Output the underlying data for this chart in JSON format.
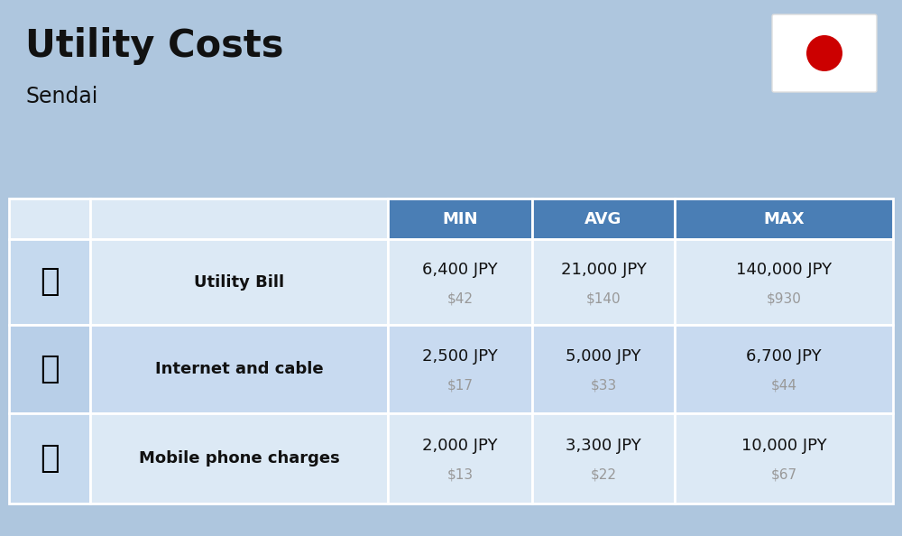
{
  "title": "Utility Costs",
  "subtitle": "Sendai",
  "background_color": "#aec6de",
  "header_color": "#4a7eb5",
  "header_text_color": "#ffffff",
  "row_bg_light": "#dce9f5",
  "row_bg_dark": "#c8daf0",
  "icon_col_bg_light": "#c5d9ee",
  "icon_col_bg_dark": "#b8cfe8",
  "columns": [
    "MIN",
    "AVG",
    "MAX"
  ],
  "rows": [
    {
      "label": "Utility Bill",
      "min_jpy": "6,400 JPY",
      "min_usd": "$42",
      "avg_jpy": "21,000 JPY",
      "avg_usd": "$140",
      "max_jpy": "140,000 JPY",
      "max_usd": "$930"
    },
    {
      "label": "Internet and cable",
      "min_jpy": "2,500 JPY",
      "min_usd": "$17",
      "avg_jpy": "5,000 JPY",
      "avg_usd": "$33",
      "max_jpy": "6,700 JPY",
      "max_usd": "$44"
    },
    {
      "label": "Mobile phone charges",
      "min_jpy": "2,000 JPY",
      "min_usd": "$13",
      "avg_jpy": "3,300 JPY",
      "avg_usd": "$22",
      "max_jpy": "10,000 JPY",
      "max_usd": "$67"
    }
  ],
  "title_fontsize": 30,
  "subtitle_fontsize": 17,
  "header_fontsize": 13,
  "label_fontsize": 13,
  "jpy_fontsize": 13,
  "usd_fontsize": 11,
  "flag_bg": "#ffffff",
  "flag_circle_color": "#cc0000",
  "title_color": "#111111",
  "subtitle_color": "#111111",
  "label_color": "#111111",
  "jpy_color": "#111111",
  "usd_color": "#999999"
}
